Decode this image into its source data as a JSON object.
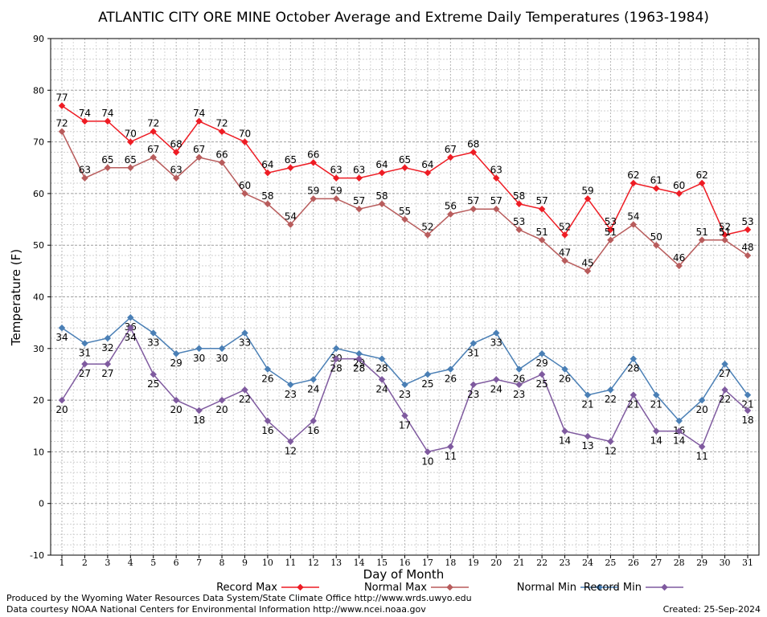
{
  "chart_data": {
    "type": "line",
    "title": "ATLANTIC CITY ORE MINE October Average and Extreme Daily Temperatures (1963-1984)",
    "xlabel": "Day of Month",
    "ylabel": "Temperature (F)",
    "ylim": [
      -10,
      90
    ],
    "xlim": [
      1,
      31
    ],
    "grid": true,
    "legend_position": "bottom",
    "x": [
      1,
      2,
      3,
      4,
      5,
      6,
      7,
      8,
      9,
      10,
      11,
      12,
      13,
      14,
      15,
      16,
      17,
      18,
      19,
      20,
      21,
      22,
      23,
      24,
      25,
      26,
      27,
      28,
      29,
      30,
      31
    ],
    "x_tick_labels": [
      "1",
      "2",
      "3",
      "4",
      "5",
      "6",
      "7",
      "8",
      "9",
      "10",
      "11",
      "12",
      "13",
      "14",
      "15",
      "16",
      "17",
      "18",
      "19",
      "20",
      "21",
      "22",
      "23",
      "24",
      "25",
      "26",
      "27",
      "28",
      "29",
      "30",
      "31"
    ],
    "y_tick_labels": [
      "-10",
      "0",
      "10",
      "20",
      "30",
      "40",
      "50",
      "60",
      "70",
      "80",
      "90"
    ],
    "y_ticks": [
      -10,
      0,
      10,
      20,
      30,
      40,
      50,
      60,
      70,
      80,
      90
    ],
    "series": [
      {
        "name": "Record Max",
        "color": "#ee1c24",
        "values": [
          77,
          74,
          74,
          70,
          72,
          68,
          74,
          72,
          70,
          64,
          65,
          66,
          63,
          63,
          64,
          65,
          64,
          67,
          68,
          63,
          58,
          57,
          52,
          59,
          53,
          62,
          61,
          60,
          62,
          52,
          53
        ],
        "label_position": "above"
      },
      {
        "name": "Normal Max",
        "color": "#b85c5c",
        "values": [
          72,
          63,
          65,
          65,
          67,
          63,
          67,
          66,
          60,
          58,
          54,
          59,
          59,
          57,
          58,
          55,
          52,
          56,
          57,
          57,
          53,
          51,
          47,
          45,
          51,
          54,
          50,
          46,
          51,
          51,
          48
        ],
        "label_position": "above"
      },
      {
        "name": "Normal Min",
        "color": "#4a7fb5",
        "values": [
          34,
          31,
          32,
          36,
          33,
          29,
          30,
          30,
          33,
          26,
          23,
          24,
          30,
          29,
          28,
          23,
          25,
          26,
          31,
          33,
          26,
          29,
          26,
          21,
          22,
          28,
          21,
          16,
          20,
          27,
          21
        ],
        "label_position": "below"
      },
      {
        "name": "Record Min",
        "color": "#7f5a9f",
        "values": [
          20,
          27,
          27,
          34,
          25,
          20,
          18,
          20,
          22,
          16,
          12,
          16,
          28,
          28,
          24,
          17,
          10,
          11,
          23,
          24,
          23,
          25,
          14,
          13,
          12,
          21,
          14,
          14,
          11,
          22,
          18
        ],
        "label_position": "below"
      }
    ]
  },
  "footer": {
    "produced_by": "Produced by the Wyoming Water Resources Data System/State Climate Office http://www.wrds.uwyo.edu",
    "data_courtesy": "Data courtesy NOAA National Centers for Environmental Information http://www.ncei.noaa.gov",
    "created": "Created:  25-Sep-2024"
  }
}
